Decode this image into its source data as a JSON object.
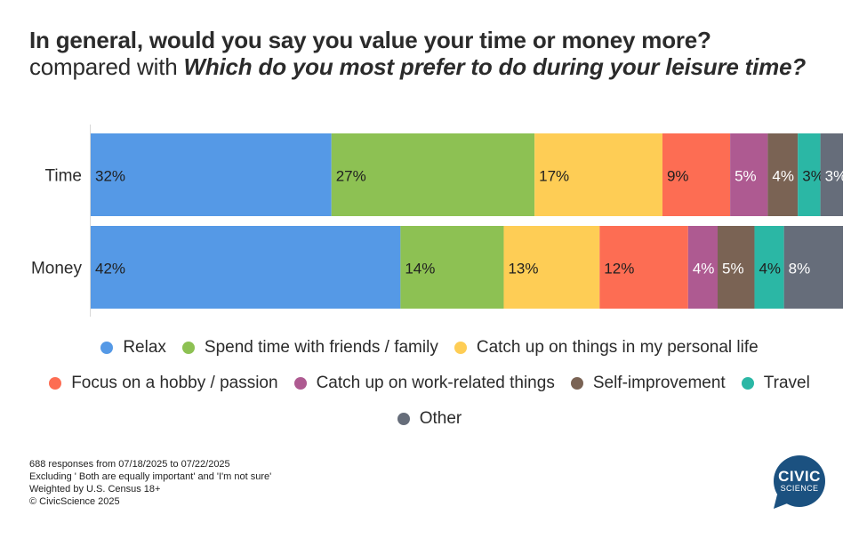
{
  "title": "In general, would you say you value your time or money more?",
  "subtitle_prefix": "compared with ",
  "subtitle_question": "Which do you most prefer to do during your leisure time?",
  "chart_data": {
    "type": "bar",
    "orientation": "horizontal",
    "stacked": true,
    "categories": [
      "Time",
      "Money"
    ],
    "series": [
      {
        "name": "Relax",
        "color": "#5599e6",
        "values": [
          32,
          42
        ]
      },
      {
        "name": "Spend time with friends / family",
        "color": "#8dc153",
        "values": [
          27,
          14
        ]
      },
      {
        "name": "Catch up on things in my personal life",
        "color": "#fecd55",
        "values": [
          17,
          13
        ]
      },
      {
        "name": "Focus on a hobby / passion",
        "color": "#fd6d53",
        "values": [
          9,
          12
        ]
      },
      {
        "name": "Catch up on work-related things",
        "color": "#ae5a91",
        "values": [
          5,
          4
        ]
      },
      {
        "name": "Self-improvement",
        "color": "#7a6354",
        "values": [
          4,
          5
        ]
      },
      {
        "name": "Travel",
        "color": "#2bb7a5",
        "values": [
          3,
          4
        ]
      },
      {
        "name": "Other",
        "color": "#666d7a",
        "values": [
          3,
          8
        ]
      }
    ],
    "value_labels": [
      [
        "32%",
        "27%",
        "17%",
        "9%",
        "5%",
        "4%",
        "3%",
        "3%"
      ],
      [
        "42%",
        "14%",
        "13%",
        "12%",
        "4%",
        "5%",
        "4%",
        "8%"
      ]
    ],
    "legend_position": "bottom"
  },
  "legend_rows": [
    [
      0,
      1,
      2
    ],
    [
      3,
      4,
      5,
      6
    ],
    [
      7
    ]
  ],
  "footnotes": [
    "688 responses from 07/18/2025 to 07/22/2025",
    "Excluding ' Both are equally important' and 'I'm not sure'",
    "Weighted by U.S. Census 18+",
    "© CivicScience 2025"
  ],
  "logo": {
    "line1": "CIVIC",
    "line2": "SCIENCE",
    "color": "#1b5180"
  }
}
